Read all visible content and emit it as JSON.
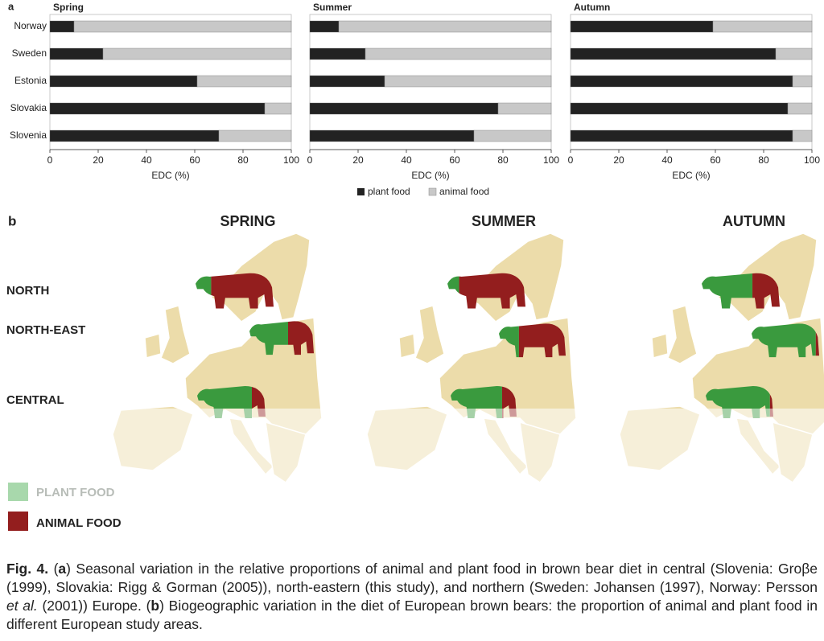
{
  "chart_data": [
    {
      "type": "bar",
      "stacked": true,
      "orientation": "horizontal",
      "title": "Spring",
      "xlabel": "EDC (%)",
      "categories": [
        "Norway",
        "Sweden",
        "Estonia",
        "Slovakia",
        "Slovenia"
      ],
      "series": [
        {
          "name": "plant food",
          "color": "#222222",
          "values": [
            10,
            22,
            61,
            89,
            70
          ]
        },
        {
          "name": "animal food",
          "color": "#c8c8c8",
          "values": [
            90,
            78,
            39,
            11,
            30
          ]
        }
      ],
      "xlim": [
        0,
        100
      ],
      "xticks": [
        0,
        20,
        40,
        60,
        80,
        100
      ]
    },
    {
      "type": "bar",
      "stacked": true,
      "orientation": "horizontal",
      "title": "Summer",
      "xlabel": "EDC (%)",
      "series": [
        {
          "color": "#222222",
          "values": [
            12,
            23,
            31,
            78,
            68
          ]
        },
        {
          "color": "#c8c8c8",
          "values": [
            88,
            77,
            69,
            22,
            32
          ]
        }
      ],
      "xlim": [
        0,
        100
      ],
      "xticks": [
        0,
        20,
        40,
        60,
        80,
        100
      ]
    },
    {
      "type": "bar",
      "stacked": true,
      "orientation": "horizontal",
      "title": "Autumn",
      "xlabel": "EDC (%)",
      "series": [
        {
          "color": "#222222",
          "values": [
            59,
            85,
            92,
            90,
            92
          ]
        },
        {
          "color": "#c8c8c8",
          "values": [
            41,
            15,
            8,
            10,
            8
          ]
        }
      ],
      "xlim": [
        0,
        100
      ],
      "xticks": [
        0,
        20,
        40,
        60,
        80,
        100
      ]
    }
  ],
  "panel_a": {
    "label": "a"
  },
  "panel_b": {
    "label": "b",
    "seasons": [
      "SPRING",
      "SUMMER",
      "AUTUMN"
    ],
    "regions": [
      "NORTH",
      "NORTH-EAST",
      "CENTRAL"
    ],
    "legend": [
      "PLANT FOOD",
      "ANIMAL FOOD"
    ]
  },
  "caption": {
    "parts": [
      "Fig. 4.",
      " (",
      "a",
      ") Seasonal variation in the relative proportions of animal and plant food in brown bear diet in central (Slovenia: Groβe (1999), Slovakia: Rigg & Gorman (2005)), north-eastern (this study), and northern (Sweden: Johansen (1997), Norway: Persson ",
      "et al.",
      " (2001)) Europe. (",
      "b",
      ") Biogeographic variation in the diet of European brown bears: the proportion of animal and plant food in different European study areas."
    ]
  }
}
